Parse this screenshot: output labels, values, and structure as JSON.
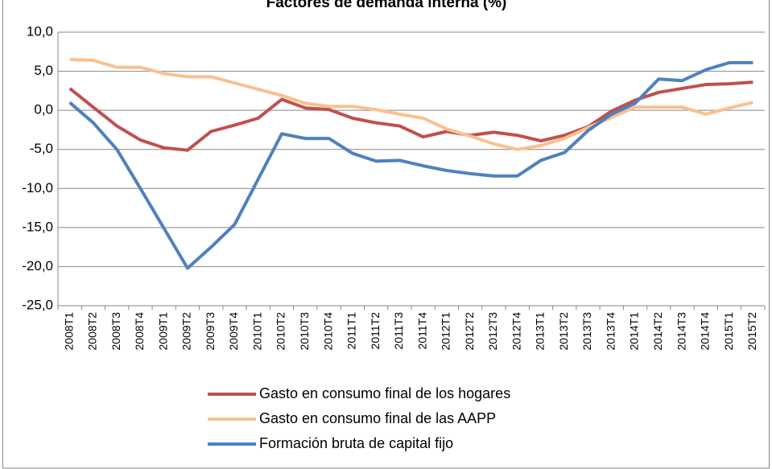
{
  "chart_data": {
    "type": "line",
    "title": "Factores de demanda interna (%)",
    "categories": [
      "2008T1",
      "2008T2",
      "2008T3",
      "2008T4",
      "2009T1",
      "2009T2",
      "2009T3",
      "2009T4",
      "2010T1",
      "2010T2",
      "2010T3",
      "2010T4",
      "2011T1",
      "2011T2",
      "2011T3",
      "2011T4",
      "2012T1",
      "2012T2",
      "2012T3",
      "2012T4",
      "2013T1",
      "2013T2",
      "2013T3",
      "2013T4",
      "2014T1",
      "2014T2",
      "2014T3",
      "2014T4",
      "2015T1",
      "2015T2"
    ],
    "series": [
      {
        "name": "Gasto en consumo final de los hogares",
        "color": "#c0504d",
        "values": [
          2.8,
          0.4,
          -2.0,
          -3.8,
          -4.8,
          -5.1,
          -2.7,
          -1.9,
          -1.0,
          1.4,
          0.3,
          0.1,
          -1.0,
          -1.6,
          -2.0,
          -3.4,
          -2.7,
          -3.2,
          -2.8,
          -3.2,
          -3.9,
          -3.2,
          -2.1,
          -0.1,
          1.3,
          2.3,
          2.8,
          3.3,
          3.4,
          3.6
        ]
      },
      {
        "name": "Gasto en consumo final de las AAPP",
        "color": "#fac08f",
        "values": [
          6.5,
          6.4,
          5.5,
          5.5,
          4.7,
          4.3,
          4.3,
          3.5,
          2.7,
          1.9,
          0.9,
          0.5,
          0.5,
          0.1,
          -0.5,
          -1.0,
          -2.4,
          -3.3,
          -4.3,
          -5.0,
          -4.5,
          -3.6,
          -2.2,
          -0.9,
          0.4,
          0.4,
          0.4,
          -0.5,
          0.3,
          1.0
        ]
      },
      {
        "name": "Formación bruta de capital fijo",
        "color": "#4f81bd",
        "values": [
          1.0,
          -1.6,
          -5.0,
          -10.0,
          -15.1,
          -20.2,
          -17.5,
          -14.6,
          -8.8,
          -3.0,
          -3.6,
          -3.6,
          -5.5,
          -6.5,
          -6.4,
          -7.1,
          -7.7,
          -8.1,
          -8.4,
          -8.4,
          -6.4,
          -5.4,
          -2.6,
          -0.5,
          0.9,
          4.0,
          3.8,
          5.2,
          6.1,
          6.1
        ]
      }
    ],
    "ylim": [
      -25,
      10
    ],
    "yticks": [
      {
        "value": -25,
        "label": "-25,0"
      },
      {
        "value": -20,
        "label": "-20,0"
      },
      {
        "value": -15,
        "label": "-15,0"
      },
      {
        "value": -10,
        "label": "-10,0"
      },
      {
        "value": -5,
        "label": "-5,0"
      },
      {
        "value": 0,
        "label": "0,0"
      },
      {
        "value": 5,
        "label": "5,0"
      },
      {
        "value": 10,
        "label": "10,0"
      }
    ],
    "grid": true,
    "legend": "bottom"
  }
}
